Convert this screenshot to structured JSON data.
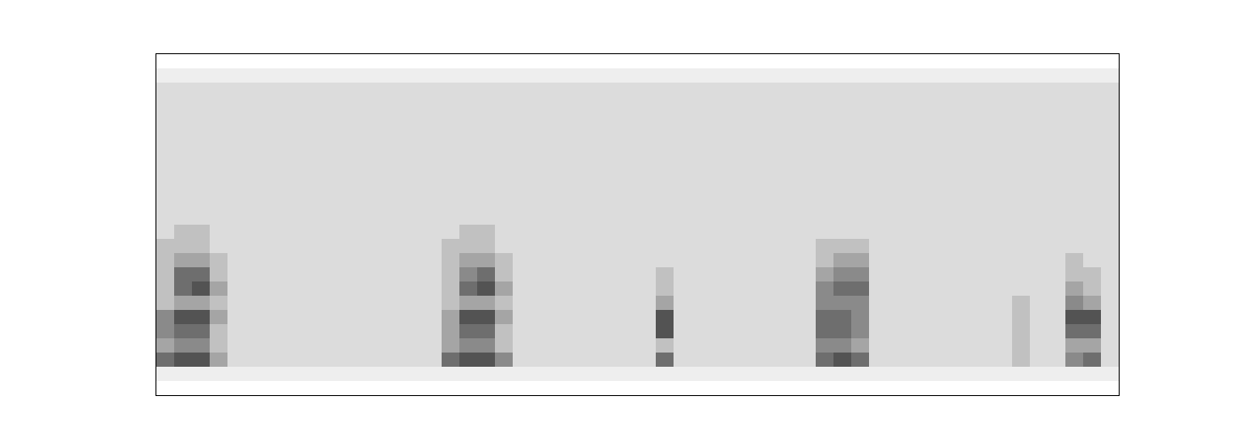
{
  "chart_data": {
    "type": "heatmap",
    "xlim": [
      0,
      54
    ],
    "ylim": [
      0,
      24
    ],
    "zlim": [
      0,
      10
    ],
    "tick_labels": false,
    "grid": false,
    "cells": [
      [
        0,
        0,
        0,
        0,
        0,
        0,
        0,
        0,
        0,
        0,
        0,
        0,
        0,
        0,
        0,
        0,
        0,
        0,
        0,
        0,
        0,
        0,
        0,
        0,
        0,
        0,
        0,
        0,
        0,
        0,
        0,
        0,
        0,
        0,
        0,
        0,
        0,
        0,
        0,
        0,
        0,
        0,
        0,
        0,
        0,
        0,
        0,
        0,
        0,
        0,
        0,
        0,
        0,
        0
      ],
      [
        1,
        1,
        1,
        1,
        1,
        1,
        1,
        1,
        1,
        1,
        1,
        1,
        1,
        1,
        1,
        1,
        1,
        1,
        1,
        1,
        1,
        1,
        1,
        1,
        1,
        1,
        1,
        1,
        1,
        1,
        1,
        1,
        1,
        1,
        1,
        1,
        1,
        1,
        1,
        1,
        1,
        1,
        1,
        1,
        1,
        1,
        1,
        1,
        1,
        1,
        1,
        1,
        1,
        1
      ],
      [
        6,
        7,
        7,
        4,
        2,
        2,
        2,
        2,
        2,
        2,
        2,
        2,
        2,
        2,
        2,
        2,
        6,
        7,
        7,
        5,
        2,
        2,
        2,
        2,
        2,
        2,
        2,
        2,
        6,
        2,
        2,
        2,
        2,
        2,
        2,
        2,
        2,
        6,
        7,
        6,
        2,
        2,
        2,
        2,
        2,
        2,
        2,
        2,
        3,
        2,
        2,
        5,
        6,
        2
      ],
      [
        4,
        5,
        5,
        3,
        2,
        2,
        2,
        2,
        2,
        2,
        2,
        2,
        2,
        2,
        2,
        2,
        4,
        5,
        5,
        3,
        2,
        2,
        2,
        2,
        2,
        2,
        2,
        2,
        3,
        2,
        2,
        2,
        2,
        2,
        2,
        2,
        2,
        5,
        5,
        4,
        2,
        2,
        2,
        2,
        2,
        2,
        2,
        2,
        3,
        2,
        2,
        4,
        4,
        2
      ],
      [
        5,
        6,
        6,
        3,
        2,
        2,
        2,
        2,
        2,
        2,
        2,
        2,
        2,
        2,
        2,
        2,
        4,
        6,
        6,
        3,
        2,
        2,
        2,
        2,
        2,
        2,
        2,
        2,
        7,
        2,
        2,
        2,
        2,
        2,
        2,
        2,
        2,
        6,
        6,
        5,
        2,
        2,
        2,
        2,
        2,
        2,
        2,
        2,
        3,
        2,
        2,
        6,
        6,
        2
      ],
      [
        5,
        7,
        7,
        4,
        2,
        2,
        2,
        2,
        2,
        2,
        2,
        2,
        2,
        2,
        2,
        2,
        4,
        7,
        7,
        4,
        2,
        2,
        2,
        2,
        2,
        2,
        2,
        2,
        7,
        2,
        2,
        2,
        2,
        2,
        2,
        2,
        2,
        6,
        6,
        5,
        2,
        2,
        2,
        2,
        2,
        2,
        2,
        2,
        3,
        2,
        2,
        7,
        7,
        2
      ],
      [
        3,
        4,
        4,
        3,
        2,
        2,
        2,
        2,
        2,
        2,
        2,
        2,
        2,
        2,
        2,
        2,
        3,
        4,
        4,
        3,
        2,
        2,
        2,
        2,
        2,
        2,
        2,
        2,
        4,
        2,
        2,
        2,
        2,
        2,
        2,
        2,
        2,
        5,
        5,
        5,
        2,
        2,
        2,
        2,
        2,
        2,
        2,
        2,
        3,
        2,
        2,
        5,
        4,
        2
      ],
      [
        3,
        6,
        7,
        4,
        2,
        2,
        2,
        2,
        2,
        2,
        2,
        2,
        2,
        2,
        2,
        2,
        3,
        6,
        7,
        4,
        2,
        2,
        2,
        2,
        2,
        2,
        2,
        2,
        3,
        2,
        2,
        2,
        2,
        2,
        2,
        2,
        2,
        5,
        6,
        6,
        2,
        2,
        2,
        2,
        2,
        2,
        2,
        2,
        2,
        2,
        2,
        4,
        3,
        2
      ],
      [
        3,
        6,
        6,
        3,
        2,
        2,
        2,
        2,
        2,
        2,
        2,
        2,
        2,
        2,
        2,
        2,
        3,
        5,
        6,
        3,
        2,
        2,
        2,
        2,
        2,
        2,
        2,
        2,
        3,
        2,
        2,
        2,
        2,
        2,
        2,
        2,
        2,
        4,
        5,
        5,
        2,
        2,
        2,
        2,
        2,
        2,
        2,
        2,
        2,
        2,
        2,
        3,
        3,
        2
      ],
      [
        3,
        4,
        4,
        3,
        2,
        2,
        2,
        2,
        2,
        2,
        2,
        2,
        2,
        2,
        2,
        2,
        3,
        4,
        4,
        3,
        2,
        2,
        2,
        2,
        2,
        2,
        2,
        2,
        2,
        2,
        2,
        2,
        2,
        2,
        2,
        2,
        2,
        3,
        4,
        4,
        2,
        2,
        2,
        2,
        2,
        2,
        2,
        2,
        2,
        2,
        2,
        3,
        2,
        2
      ],
      [
        3,
        3,
        3,
        2,
        2,
        2,
        2,
        2,
        2,
        2,
        2,
        2,
        2,
        2,
        2,
        2,
        3,
        3,
        3,
        2,
        2,
        2,
        2,
        2,
        2,
        2,
        2,
        2,
        2,
        2,
        2,
        2,
        2,
        2,
        2,
        2,
        2,
        3,
        3,
        3,
        2,
        2,
        2,
        2,
        2,
        2,
        2,
        2,
        2,
        2,
        2,
        2,
        2,
        2
      ],
      [
        2,
        3,
        3,
        2,
        2,
        2,
        2,
        2,
        2,
        2,
        2,
        2,
        2,
        2,
        2,
        2,
        2,
        3,
        3,
        2,
        2,
        2,
        2,
        2,
        2,
        2,
        2,
        2,
        2,
        2,
        2,
        2,
        2,
        2,
        2,
        2,
        2,
        2,
        2,
        2,
        2,
        2,
        2,
        2,
        2,
        2,
        2,
        2,
        2,
        2,
        2,
        2,
        2,
        2
      ],
      [
        2,
        2,
        2,
        2,
        2,
        2,
        2,
        2,
        2,
        2,
        2,
        2,
        2,
        2,
        2,
        2,
        2,
        2,
        2,
        2,
        2,
        2,
        2,
        2,
        2,
        2,
        2,
        2,
        2,
        2,
        2,
        2,
        2,
        2,
        2,
        2,
        2,
        2,
        2,
        2,
        2,
        2,
        2,
        2,
        2,
        2,
        2,
        2,
        2,
        2,
        2,
        2,
        2,
        2
      ],
      [
        2,
        2,
        2,
        2,
        2,
        2,
        2,
        2,
        2,
        2,
        2,
        2,
        2,
        2,
        2,
        2,
        2,
        2,
        2,
        2,
        2,
        2,
        2,
        2,
        2,
        2,
        2,
        2,
        2,
        2,
        2,
        2,
        2,
        2,
        2,
        2,
        2,
        2,
        2,
        2,
        2,
        2,
        2,
        2,
        2,
        2,
        2,
        2,
        2,
        2,
        2,
        2,
        2,
        2
      ],
      [
        2,
        2,
        2,
        2,
        2,
        2,
        2,
        2,
        2,
        2,
        2,
        2,
        2,
        2,
        2,
        2,
        2,
        2,
        2,
        2,
        2,
        2,
        2,
        2,
        2,
        2,
        2,
        2,
        2,
        2,
        2,
        2,
        2,
        2,
        2,
        2,
        2,
        2,
        2,
        2,
        2,
        2,
        2,
        2,
        2,
        2,
        2,
        2,
        2,
        2,
        2,
        2,
        2,
        2
      ],
      [
        2,
        2,
        2,
        2,
        2,
        2,
        2,
        2,
        2,
        2,
        2,
        2,
        2,
        2,
        2,
        2,
        2,
        2,
        2,
        2,
        2,
        2,
        2,
        2,
        2,
        2,
        2,
        2,
        2,
        2,
        2,
        2,
        2,
        2,
        2,
        2,
        2,
        2,
        2,
        2,
        2,
        2,
        2,
        2,
        2,
        2,
        2,
        2,
        2,
        2,
        2,
        2,
        2,
        2
      ],
      [
        2,
        2,
        2,
        2,
        2,
        2,
        2,
        2,
        2,
        2,
        2,
        2,
        2,
        2,
        2,
        2,
        2,
        2,
        2,
        2,
        2,
        2,
        2,
        2,
        2,
        2,
        2,
        2,
        2,
        2,
        2,
        2,
        2,
        2,
        2,
        2,
        2,
        2,
        2,
        2,
        2,
        2,
        2,
        2,
        2,
        2,
        2,
        2,
        2,
        2,
        2,
        2,
        2,
        2
      ],
      [
        2,
        2,
        2,
        2,
        2,
        2,
        2,
        2,
        2,
        2,
        2,
        2,
        2,
        2,
        2,
        2,
        2,
        2,
        2,
        2,
        2,
        2,
        2,
        2,
        2,
        2,
        2,
        2,
        2,
        2,
        2,
        2,
        2,
        2,
        2,
        2,
        2,
        2,
        2,
        2,
        2,
        2,
        2,
        2,
        2,
        2,
        2,
        2,
        2,
        2,
        2,
        2,
        2,
        2
      ],
      [
        2,
        2,
        2,
        2,
        2,
        2,
        2,
        2,
        2,
        2,
        2,
        2,
        2,
        2,
        2,
        2,
        2,
        2,
        2,
        2,
        2,
        2,
        2,
        2,
        2,
        2,
        2,
        2,
        2,
        2,
        2,
        2,
        2,
        2,
        2,
        2,
        2,
        2,
        2,
        2,
        2,
        2,
        2,
        2,
        2,
        2,
        2,
        2,
        2,
        2,
        2,
        2,
        2,
        2
      ],
      [
        2,
        2,
        2,
        2,
        2,
        2,
        2,
        2,
        2,
        2,
        2,
        2,
        2,
        2,
        2,
        2,
        2,
        2,
        2,
        2,
        2,
        2,
        2,
        2,
        2,
        2,
        2,
        2,
        2,
        2,
        2,
        2,
        2,
        2,
        2,
        2,
        2,
        2,
        2,
        2,
        2,
        2,
        2,
        2,
        2,
        2,
        2,
        2,
        2,
        2,
        2,
        2,
        2,
        2
      ],
      [
        2,
        2,
        2,
        2,
        2,
        2,
        2,
        2,
        2,
        2,
        2,
        2,
        2,
        2,
        2,
        2,
        2,
        2,
        2,
        2,
        2,
        2,
        2,
        2,
        2,
        2,
        2,
        2,
        2,
        2,
        2,
        2,
        2,
        2,
        2,
        2,
        2,
        2,
        2,
        2,
        2,
        2,
        2,
        2,
        2,
        2,
        2,
        2,
        2,
        2,
        2,
        2,
        2,
        2
      ],
      [
        2,
        2,
        2,
        2,
        2,
        2,
        2,
        2,
        2,
        2,
        2,
        2,
        2,
        2,
        2,
        2,
        2,
        2,
        2,
        2,
        2,
        2,
        2,
        2,
        2,
        2,
        2,
        2,
        2,
        2,
        2,
        2,
        2,
        2,
        2,
        2,
        2,
        2,
        2,
        2,
        2,
        2,
        2,
        2,
        2,
        2,
        2,
        2,
        2,
        2,
        2,
        2,
        2,
        2
      ],
      [
        1,
        1,
        1,
        1,
        1,
        1,
        1,
        1,
        1,
        1,
        1,
        1,
        1,
        1,
        1,
        1,
        1,
        1,
        1,
        1,
        1,
        1,
        1,
        1,
        1,
        1,
        1,
        1,
        1,
        1,
        1,
        1,
        1,
        1,
        1,
        1,
        1,
        1,
        1,
        1,
        1,
        1,
        1,
        1,
        1,
        1,
        1,
        1,
        1,
        1,
        1,
        1,
        1,
        1
      ],
      [
        0,
        0,
        0,
        0,
        0,
        0,
        0,
        0,
        0,
        0,
        0,
        0,
        0,
        0,
        0,
        0,
        0,
        0,
        0,
        0,
        0,
        0,
        0,
        0,
        0,
        0,
        0,
        0,
        0,
        0,
        0,
        0,
        0,
        0,
        0,
        0,
        0,
        0,
        0,
        0,
        0,
        0,
        0,
        0,
        0,
        0,
        0,
        0,
        0,
        0,
        0,
        0,
        0,
        0
      ]
    ]
  }
}
